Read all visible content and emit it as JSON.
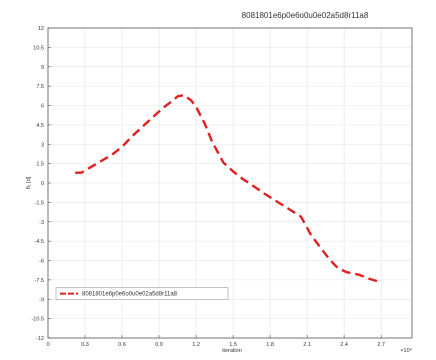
{
  "chart_data": {
    "type": "line",
    "title": "8081801e6p0e6o0u0e02a5d8r11a8",
    "xlabel": "iteration",
    "ylabel": "θ₁ [d]",
    "x_exponent": "×10⁴",
    "xlim": [
      0,
      2.95
    ],
    "ylim": [
      -12,
      12
    ],
    "x_ticks": [
      0,
      0.3,
      0.6,
      0.9,
      1.2,
      1.5,
      1.8,
      2.1,
      2.4,
      2.7
    ],
    "x_tick_labels": [
      "0",
      "0.3",
      "0.6",
      "0.9",
      "1.2",
      "1.5",
      "1.8",
      "2.1",
      "2.4",
      "2.7"
    ],
    "y_ticks": [
      -12,
      -10.5,
      -9,
      -7.5,
      -6,
      -4.5,
      -3,
      -1.5,
      0,
      1.5,
      3,
      4.5,
      6,
      7.5,
      9,
      10.5,
      12
    ],
    "y_tick_labels": [
      "-12",
      "-10.5",
      "-9",
      "-7.5",
      "-6",
      "-4.5",
      "-3",
      "-1.5",
      "0",
      "1.5",
      "3",
      "4.5",
      "6",
      "7.5",
      "9",
      "10.5",
      "12"
    ],
    "grid": true,
    "legend_position": "lower-left",
    "series": [
      {
        "name": "8081801e6p0e6o0u0e02a5d8r11a8",
        "color": "#e02020",
        "line_style": "dashed",
        "x": [
          0.22,
          0.27,
          0.52,
          0.6,
          0.68,
          0.77,
          0.85,
          0.93,
          1.0,
          1.05,
          1.1,
          1.16,
          1.2,
          1.27,
          1.33,
          1.42,
          1.5,
          1.58,
          1.66,
          1.75,
          1.85,
          1.95,
          2.05,
          2.13,
          2.2,
          2.28,
          2.35,
          2.42,
          2.52,
          2.6,
          2.7
        ],
        "y": [
          0.8,
          0.8,
          2.2,
          2.8,
          3.6,
          4.4,
          5.1,
          5.8,
          6.3,
          6.7,
          6.8,
          6.4,
          5.9,
          4.6,
          3.2,
          1.6,
          0.9,
          0.3,
          -0.2,
          -0.8,
          -1.4,
          -2.0,
          -2.6,
          -4.0,
          -4.9,
          -5.9,
          -6.6,
          -6.9,
          -7.1,
          -7.4,
          -7.7
        ]
      }
    ]
  }
}
